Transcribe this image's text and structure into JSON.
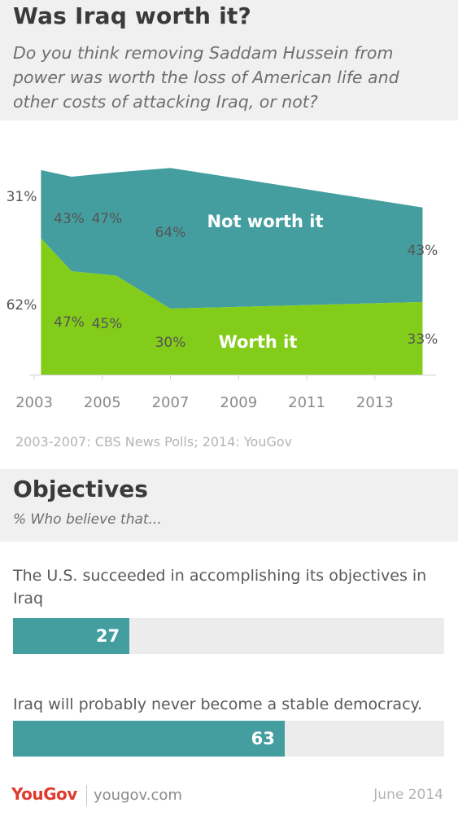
{
  "header": {
    "title": "Was Iraq worth it?",
    "subtitle": "Do you think removing Saddam Hussein from power was worth the loss of American life and other costs of attacking Iraq, or not?"
  },
  "chart_data": {
    "type": "area",
    "stacked": true,
    "x": [
      2003.2,
      2004.1,
      2005.4,
      2007.0,
      2014.4
    ],
    "x_tick_labels": [
      "2003",
      "2005",
      "2007",
      "2009",
      "2011",
      "2013"
    ],
    "x_ticks": [
      2003,
      2005,
      2007,
      2009,
      2011,
      2013
    ],
    "xlim": [
      2003,
      2014.7
    ],
    "series": [
      {
        "name": "Worth it",
        "color": "#83cc1a",
        "values": [
          62,
          47,
          45,
          30,
          33
        ],
        "labels": [
          "62%",
          "47%",
          "45%",
          "30%",
          "33%"
        ]
      },
      {
        "name": "Not worth it",
        "color": "#449e9f",
        "values": [
          31,
          43,
          47,
          64,
          43
        ],
        "labels": [
          "31%",
          "43%",
          "47%",
          "64%",
          "43%"
        ]
      }
    ],
    "grid": false,
    "source": "2003-2007: CBS News Polls; 2014: YouGov"
  },
  "objectives": {
    "title": "Objectives",
    "subtitle": "% Who believe that...",
    "items": [
      {
        "statement": "The U.S. succeeded in accomplishing its objectives in Iraq",
        "value": 27,
        "label": "27"
      },
      {
        "statement": "Iraq will probably never become a stable democracy.",
        "value": 63,
        "label": "63"
      }
    ],
    "bar_color": "#449e9f",
    "max": 100
  },
  "footer": {
    "logo": "YouGov",
    "url": "yougov.com",
    "date": "June 2014"
  }
}
